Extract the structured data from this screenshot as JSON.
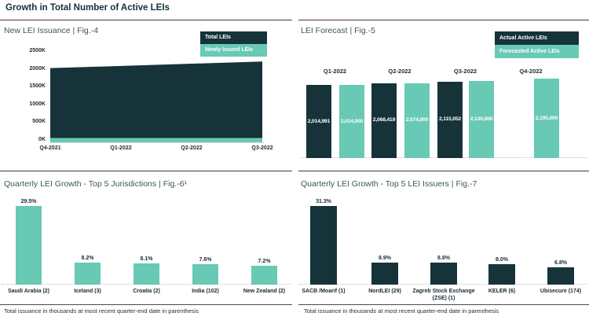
{
  "page": {
    "title": "Growth in Total Number of Active LEIs"
  },
  "colors": {
    "dark": "#16333A",
    "teal": "#68C9B4",
    "rule": "#3A3A3A",
    "text": "#1B2A33"
  },
  "footnotes": {
    "fig6": "Total issuance in thousands at most recent quarter-end date in parenthesis",
    "fig7": "Total issuance in thousands at most recent quarter-end date in parenthesis"
  },
  "chart_data": [
    {
      "id": "fig4",
      "type": "area",
      "title": "New LEI Issuance | Fig.-4",
      "x": [
        "Q4-2021",
        "Q1-2022",
        "Q2-2022",
        "Q3-2022"
      ],
      "series": [
        {
          "name": "Total LEIs",
          "color": "#16333A",
          "values_thousands": [
            2015,
            2075,
            2140,
            2200
          ]
        },
        {
          "name": "Newly Issued LEIs",
          "color": "#68C9B4",
          "values_thousands": [
            40,
            40,
            40,
            40
          ]
        }
      ],
      "y_tick_labels": [
        "2500K",
        "2000K",
        "1500K",
        "1000K",
        "500K",
        "0K"
      ],
      "ylim_thousands": [
        0,
        2500
      ],
      "grid": false,
      "legend_position": "top-right"
    },
    {
      "id": "fig5",
      "type": "bar",
      "title": "LEI Forecast | Fig.-5",
      "categories": [
        "Q1-2022",
        "Q2-2022",
        "Q3-2022",
        "Q4-2022"
      ],
      "series": [
        {
          "name": "Actual Active LEIs",
          "color": "#16333A",
          "values": [
            2014991,
            2068419,
            2115052,
            null
          ]
        },
        {
          "name": "Forecasted Active LEIs",
          "color": "#68C9B4",
          "values": [
            2014000,
            2074000,
            2130000,
            2195000
          ]
        }
      ],
      "data_labels": true,
      "grid": false,
      "legend_position": "top-right"
    },
    {
      "id": "fig6",
      "type": "bar",
      "title": "Quarterly LEI Growth - Top 5 Jurisdictions | Fig.-6¹",
      "categories": [
        "Saudi Arabia (2)",
        "Iceland (3)",
        "Croatia (2)",
        "India (102)",
        "New Zealand (2)"
      ],
      "values": [
        29.5,
        8.2,
        8.1,
        7.6,
        7.2
      ],
      "unit": "%",
      "bar_color": "#68C9B4",
      "data_labels": true,
      "grid": false
    },
    {
      "id": "fig7",
      "type": "bar",
      "title": "Quarterly LEI Growth - Top 5 LEI Issuers | Fig.-7",
      "categories": [
        "SACB /Moarif (1)",
        "NordLEI (29)",
        "Zagreb Stock Exchange (ZSE) (1)",
        "KELER (6)",
        "Ubisecure (174)"
      ],
      "values": [
        31.3,
        8.9,
        8.8,
        8.0,
        6.8
      ],
      "unit": "%",
      "bar_color": "#16333A",
      "data_labels": true,
      "grid": false
    }
  ]
}
